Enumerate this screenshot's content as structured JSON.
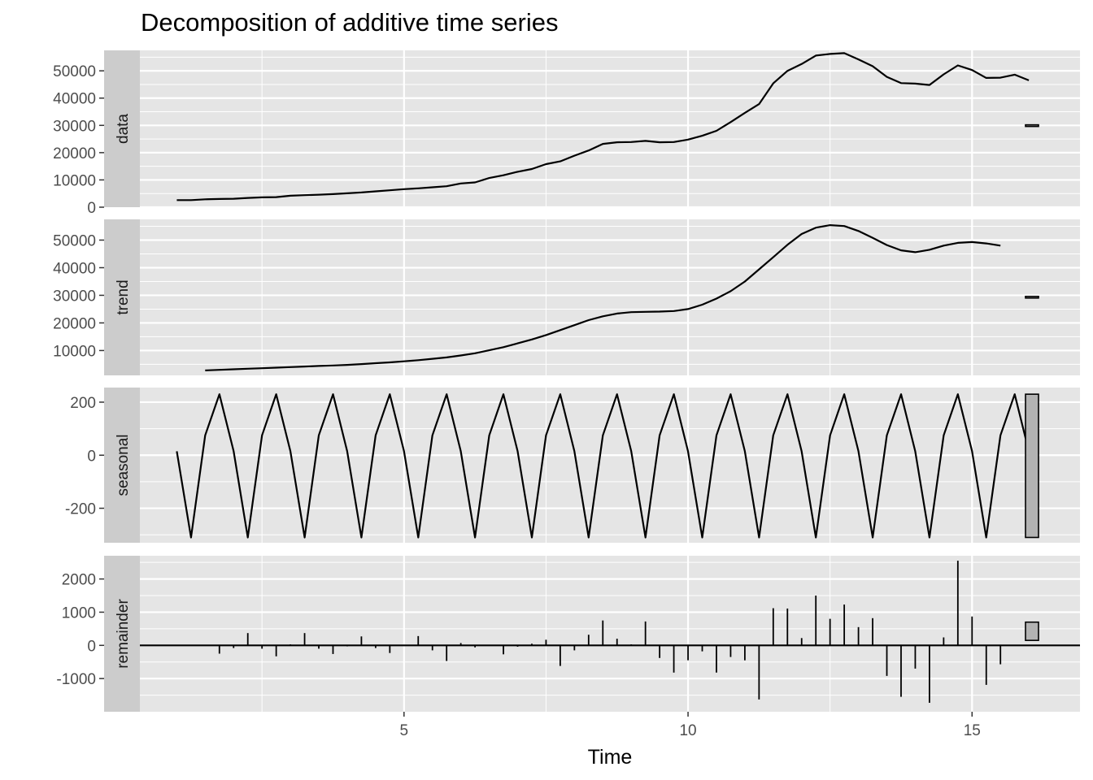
{
  "chart_data": {
    "type": "line",
    "title": "Decomposition of additive time series",
    "xlabel": "Time",
    "xlim": [
      0.35,
      16.9
    ],
    "xticks": [
      5,
      10,
      15
    ],
    "grid": true,
    "legend": "none",
    "colors": {
      "panel_bg": "#e5e5e5",
      "strip_bg": "#cccccc",
      "grid": "#ffffff",
      "line": "#000000",
      "range_bar": "#b3b3b3"
    },
    "panels": [
      {
        "name": "data",
        "kind": "line",
        "ylim": [
          0,
          57500
        ],
        "yticks": [
          0,
          10000,
          20000,
          30000,
          40000,
          50000
        ],
        "range_bar": [
          29800,
          30200
        ],
        "x": [
          1,
          1.25,
          1.5,
          1.75,
          2,
          2.25,
          2.5,
          2.75,
          3,
          3.25,
          3.5,
          3.75,
          4,
          4.25,
          4.5,
          4.75,
          5,
          5.25,
          5.5,
          5.75,
          6,
          6.25,
          6.5,
          6.75,
          7,
          7.25,
          7.5,
          7.75,
          8,
          8.25,
          8.5,
          8.75,
          9,
          9.25,
          9.5,
          9.75,
          10,
          10.25,
          10.5,
          10.75,
          11,
          11.25,
          11.5,
          11.75,
          12,
          12.25,
          12.5,
          12.75,
          13,
          13.25,
          13.5,
          13.75,
          14,
          14.25,
          14.5,
          14.75,
          15,
          15.25,
          15.5,
          15.75,
          16
        ],
        "values": [
          2600,
          2600,
          2900,
          3000,
          3100,
          3400,
          3600,
          3700,
          4200,
          4400,
          4600,
          4800,
          5100,
          5400,
          5800,
          6200,
          6600,
          6900,
          7300,
          7700,
          8700,
          9100,
          10700,
          11700,
          13000,
          14000,
          15800,
          16800,
          18900,
          20800,
          23200,
          23800,
          23900,
          24300,
          23800,
          23900,
          24800,
          26200,
          28000,
          31200,
          34600,
          37800,
          45400,
          50000,
          52500,
          55600,
          56200,
          56500,
          54200,
          51700,
          47800,
          45500,
          45300,
          44800,
          48700,
          52000,
          50300,
          47400,
          47500,
          48600,
          46500
        ]
      },
      {
        "name": "trend",
        "kind": "line",
        "ylim": [
          1000,
          57500
        ],
        "yticks": [
          10000,
          20000,
          30000,
          40000,
          50000
        ],
        "range_bar": [
          29200,
          29600
        ],
        "x": [
          1.5,
          1.75,
          2,
          2.25,
          2.5,
          2.75,
          3,
          3.25,
          3.5,
          3.75,
          4,
          4.25,
          4.5,
          4.75,
          5,
          5.25,
          5.5,
          5.75,
          6,
          6.25,
          6.5,
          6.75,
          7,
          7.25,
          7.5,
          7.75,
          8,
          8.25,
          8.5,
          8.75,
          9,
          9.25,
          9.5,
          9.75,
          10,
          10.25,
          10.5,
          10.75,
          11,
          11.25,
          11.5,
          11.75,
          12,
          12.25,
          12.5,
          12.75,
          13,
          13.25,
          13.5,
          13.75,
          14,
          14.25,
          14.5,
          14.75,
          15,
          15.25,
          15.5
        ],
        "values": [
          2800,
          3000,
          3200,
          3400,
          3600,
          3800,
          4000,
          4200,
          4400,
          4600,
          4800,
          5100,
          5400,
          5700,
          6100,
          6500,
          7000,
          7500,
          8200,
          9000,
          10100,
          11200,
          12600,
          14000,
          15600,
          17400,
          19200,
          21000,
          22400,
          23400,
          23900,
          24000,
          24100,
          24300,
          25000,
          26600,
          28800,
          31500,
          35000,
          39400,
          43800,
          48300,
          52200,
          54500,
          55400,
          55100,
          53300,
          50800,
          48200,
          46300,
          45600,
          46500,
          48000,
          49000,
          49300,
          48800,
          48000
        ]
      },
      {
        "name": "seasonal",
        "kind": "line",
        "ylim": [
          -330,
          255
        ],
        "yticks": [
          -200,
          0,
          200
        ],
        "range_bar": [
          -310,
          230
        ],
        "x": [
          1,
          1.25,
          1.5,
          1.75,
          2,
          2.25,
          2.5,
          2.75,
          3,
          3.25,
          3.5,
          3.75,
          4,
          4.25,
          4.5,
          4.75,
          5,
          5.25,
          5.5,
          5.75,
          6,
          6.25,
          6.5,
          6.75,
          7,
          7.25,
          7.5,
          7.75,
          8,
          8.25,
          8.5,
          8.75,
          9,
          9.25,
          9.5,
          9.75,
          10,
          10.25,
          10.5,
          10.75,
          11,
          11.25,
          11.5,
          11.75,
          12,
          12.25,
          12.5,
          12.75,
          13,
          13.25,
          13.5,
          13.75,
          14,
          14.25,
          14.5,
          14.75,
          15,
          15.25,
          15.5,
          15.75,
          16
        ],
        "values": [
          15,
          -310,
          75,
          230,
          15,
          -310,
          75,
          230,
          15,
          -310,
          75,
          230,
          15,
          -310,
          75,
          230,
          15,
          -310,
          75,
          230,
          15,
          -310,
          75,
          230,
          15,
          -310,
          75,
          230,
          15,
          -310,
          75,
          230,
          15,
          -310,
          75,
          230,
          15,
          -310,
          75,
          230,
          15,
          -310,
          75,
          230,
          15,
          -310,
          75,
          230,
          15,
          -310,
          75,
          230,
          15,
          -310,
          75,
          230,
          15,
          -310,
          75,
          230,
          15
        ]
      },
      {
        "name": "remainder",
        "kind": "spikes",
        "ylim": [
          -2000,
          2700
        ],
        "yticks": [
          -1000,
          0,
          1000,
          2000
        ],
        "range_bar": [
          150,
          700
        ],
        "x": [
          1.5,
          1.75,
          2,
          2.25,
          2.5,
          2.75,
          3,
          3.25,
          3.5,
          3.75,
          4,
          4.25,
          4.5,
          4.75,
          5,
          5.25,
          5.5,
          5.75,
          6,
          6.25,
          6.5,
          6.75,
          7,
          7.25,
          7.5,
          7.75,
          8,
          8.25,
          8.5,
          8.75,
          9,
          9.25,
          9.5,
          9.75,
          10,
          10.25,
          10.5,
          10.75,
          11,
          11.25,
          11.5,
          11.75,
          12,
          12.25,
          12.5,
          12.75,
          13,
          13.25,
          13.5,
          13.75,
          14,
          14.25,
          14.5,
          14.75,
          15,
          15.25,
          15.5
        ],
        "values": [
          0,
          -250,
          -80,
          370,
          -100,
          -330,
          30,
          370,
          -100,
          -260,
          -30,
          270,
          -80,
          -230,
          20,
          280,
          -150,
          -470,
          70,
          -60,
          0,
          -270,
          -40,
          50,
          170,
          -620,
          -150,
          320,
          750,
          200,
          30,
          720,
          -380,
          -820,
          -450,
          -180,
          -820,
          -350,
          -450,
          -1630,
          1120,
          1110,
          220,
          1500,
          800,
          1230,
          550,
          820,
          -920,
          -1550,
          -700,
          -1730,
          240,
          2550,
          870,
          -1190,
          -570
        ]
      }
    ]
  }
}
